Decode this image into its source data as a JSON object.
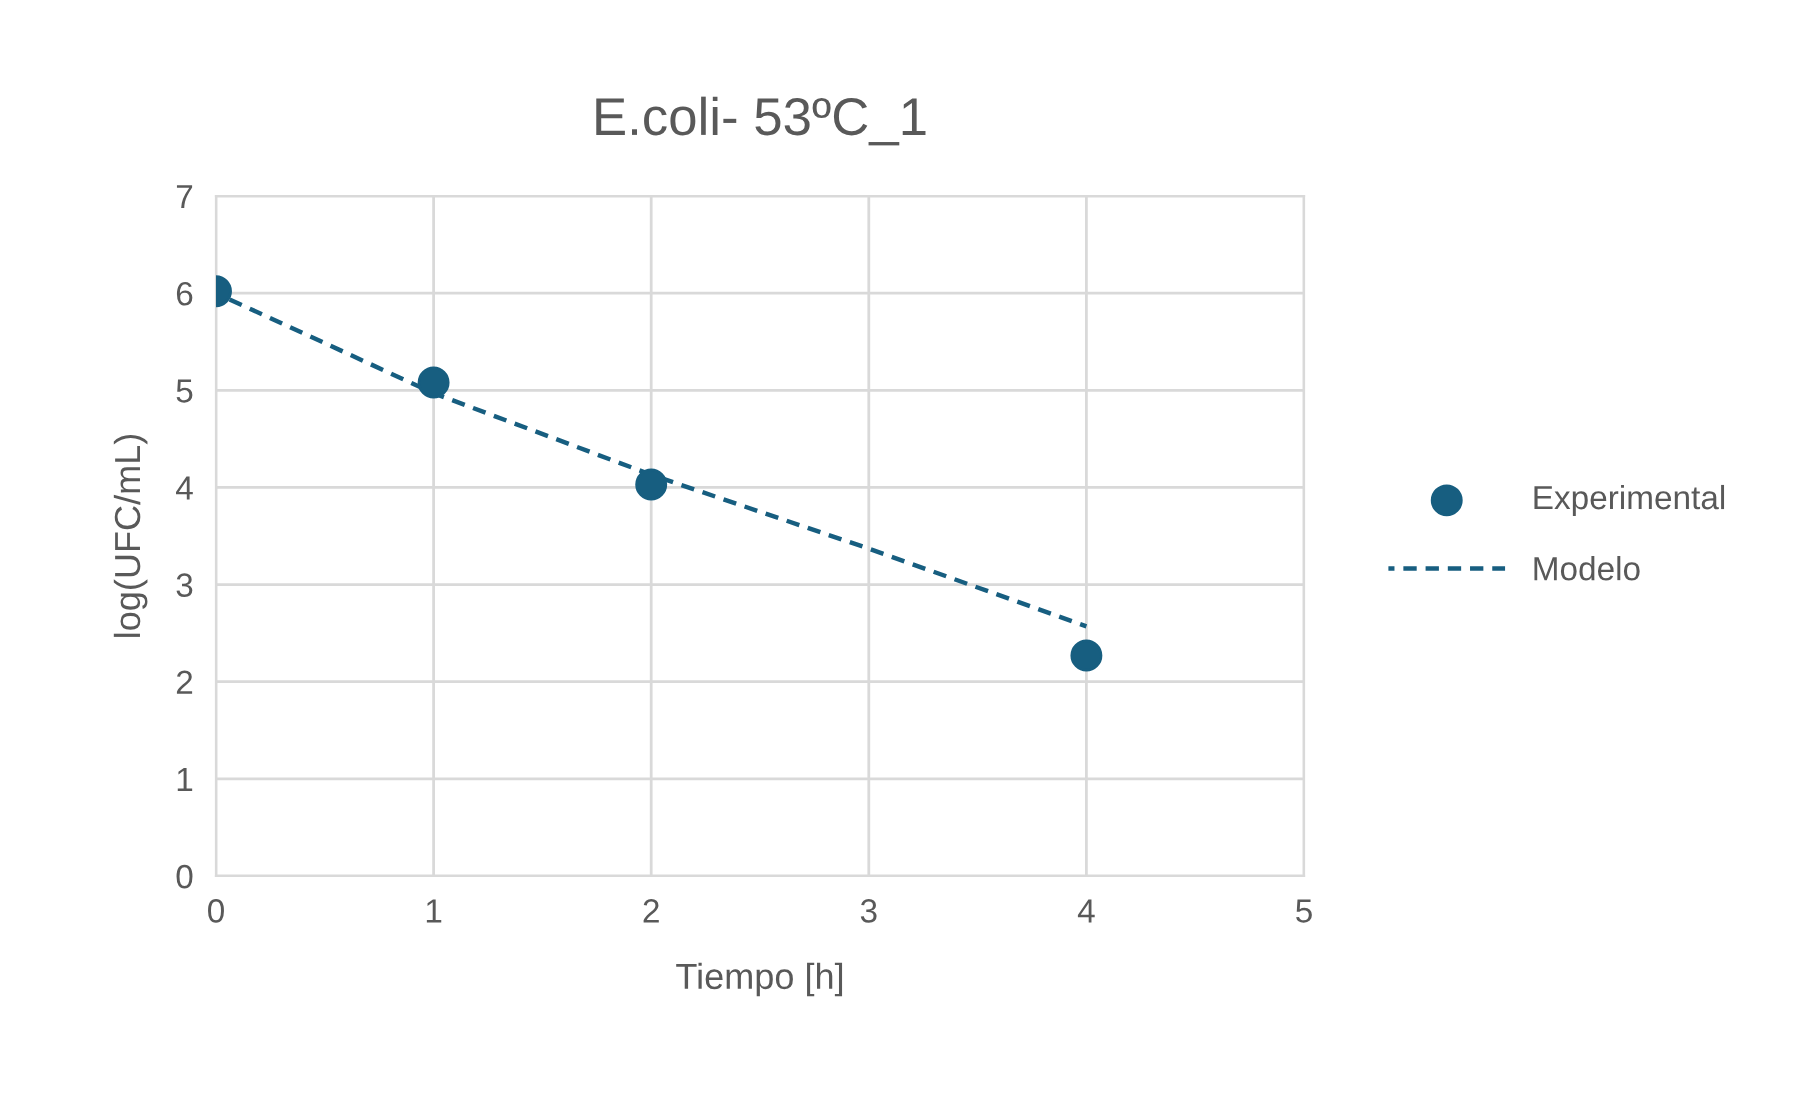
{
  "chart_data": {
    "type": "scatter",
    "title": "E.coli- 53ºC_1",
    "xlabel": "Tiempo [h]",
    "ylabel": "log(UFC/mL)",
    "xlim": [
      0,
      5
    ],
    "xticks": [
      0,
      1,
      2,
      3,
      4,
      5
    ],
    "ylim": [
      0,
      7
    ],
    "yticks": [
      0,
      1,
      2,
      3,
      4,
      5,
      6,
      7
    ],
    "grid": true,
    "legend": "right",
    "series": [
      {
        "name": "Experimental",
        "type": "scatter",
        "color": "#175e80",
        "marker": "circle",
        "x": [
          0,
          1,
          2,
          4
        ],
        "values": [
          6.02,
          5.08,
          4.03,
          2.27
        ]
      },
      {
        "name": "Modelo",
        "type": "line",
        "color": "#175e80",
        "line_style": "dashed",
        "marker": "none",
        "x": [
          0,
          1,
          2,
          3,
          4
        ],
        "values": [
          6.0,
          4.97,
          4.13,
          3.37,
          2.57
        ]
      }
    ]
  }
}
